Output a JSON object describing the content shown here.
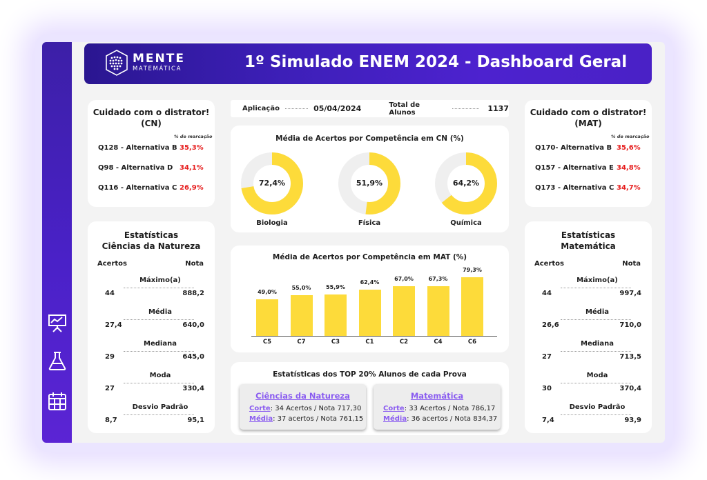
{
  "header": {
    "title": "1º Simulado ENEM 2024 - Dashboard Geral",
    "logo_main": "MENTE",
    "logo_sub": "MATEMÁTICA"
  },
  "sidebar": {
    "icons": [
      "presentation-chart-icon",
      "flask-icon",
      "calendar-icon"
    ]
  },
  "info": {
    "aplicacao_label": "Aplicação",
    "aplicacao_value": "05/04/2024",
    "total_label": "Total de Alunos",
    "total_value": "1137"
  },
  "distractor_cn": {
    "title_line1": "Cuidado com o distrator!",
    "title_line2": "(CN)",
    "pct_label": "% de marcação",
    "rows": [
      {
        "label": "Q128 - Alternativa B",
        "value": "35,3%"
      },
      {
        "label": "Q98 - Alternativa D",
        "value": "34,1%"
      },
      {
        "label": "Q116 - Alternativa C",
        "value": "26,9%"
      }
    ]
  },
  "distractor_mat": {
    "title_line1": "Cuidado com o distrator!",
    "title_line2": "(MAT)",
    "pct_label": "% de marcação",
    "rows": [
      {
        "label": "Q170- Alternativa B",
        "value": "35,6%"
      },
      {
        "label": "Q157 - Alternativa E",
        "value": "34,8%"
      },
      {
        "label": "Q173 - Alternativa C",
        "value": "34,7%"
      }
    ]
  },
  "stats_cn": {
    "title_line1": "Estatísticas",
    "title_line2": "Ciências da Natureza",
    "acertos_label": "Acertos",
    "nota_label": "Nota",
    "rows": [
      {
        "name": "Máximo(a)",
        "acertos": "44",
        "nota": "888,2"
      },
      {
        "name": "Média",
        "acertos": "27,4",
        "nota": "640,0"
      },
      {
        "name": "Mediana",
        "acertos": "29",
        "nota": "645,0"
      },
      {
        "name": "Moda",
        "acertos": "27",
        "nota": "330,4"
      },
      {
        "name": "Desvio Padrão",
        "acertos": "8,7",
        "nota": "95,1"
      }
    ]
  },
  "stats_mat": {
    "title_line1": "Estatísticas",
    "title_line2": "Matemática",
    "acertos_label": "Acertos",
    "nota_label": "Nota",
    "rows": [
      {
        "name": "Máximo(a)",
        "acertos": "44",
        "nota": "997,4"
      },
      {
        "name": "Média",
        "acertos": "26,6",
        "nota": "710,0"
      },
      {
        "name": "Mediana",
        "acertos": "27",
        "nota": "713,5"
      },
      {
        "name": "Moda",
        "acertos": "30",
        "nota": "370,4"
      },
      {
        "name": "Desvio Padrão",
        "acertos": "7,4",
        "nota": "93,9"
      }
    ]
  },
  "cn_chart": {
    "title": "Média de Acertos por Competência em CN (%)",
    "items": [
      {
        "label": "Biologia",
        "value": 72.4,
        "value_text": "72,4%"
      },
      {
        "label": "Física",
        "value": 51.9,
        "value_text": "51,9%"
      },
      {
        "label": "Química",
        "value": 64.2,
        "value_text": "64,2%"
      }
    ]
  },
  "chart_data": {
    "type": "bar",
    "title": "Média de Acertos por Competência em MAT (%)",
    "categories": [
      "C5",
      "C7",
      "C3",
      "C1",
      "C2",
      "C4",
      "C6"
    ],
    "values": [
      49.0,
      55.0,
      55.9,
      62.4,
      67.0,
      67.3,
      79.3
    ],
    "value_labels": [
      "49,0%",
      "55,0%",
      "55,9%",
      "62,4%",
      "67,0%",
      "67,3%",
      "79,3%"
    ],
    "ylim": [
      0,
      80
    ]
  },
  "top20": {
    "title": "Estatísticas dos TOP 20% Alunos de cada Prova",
    "cn": {
      "title": "Ciências da Natureza",
      "corte_key": "Corte",
      "corte_text": ": 34 Acertos / Nota 717,30",
      "media_key": "Média",
      "media_text": ": 37  acertos / Nota 761,15"
    },
    "mat": {
      "title": "Matemática",
      "corte_key": "Corte",
      "corte_text": ": 33 Acertos / Nota 786,17",
      "media_key": "Média",
      "media_text": ": 36 acertos / Nota 834,37"
    }
  },
  "colors": {
    "accent_yellow": "#fddb3a",
    "track_gray": "#efefef",
    "highlight_red": "#e61c1c",
    "header_purple": "#3d1fb8",
    "link_purple": "#8a5cf0"
  }
}
